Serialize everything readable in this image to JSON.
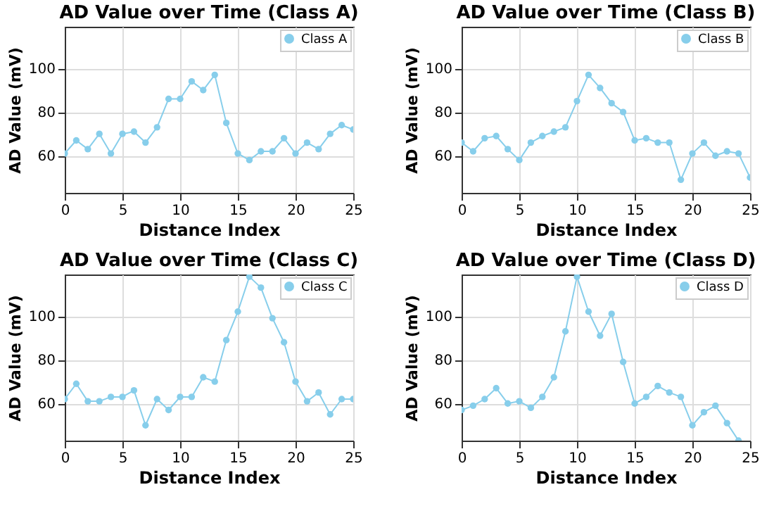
{
  "chart_data": [
    {
      "type": "line",
      "title": "AD Value over Time (Class A)",
      "xlabel": "Distance Index",
      "ylabel": "AD Value (mV)",
      "x": [
        0,
        1,
        2,
        3,
        4,
        5,
        6,
        7,
        8,
        9,
        10,
        11,
        12,
        13,
        14,
        15,
        16,
        17,
        18,
        19,
        20,
        21,
        22,
        23,
        24,
        25
      ],
      "series": [
        {
          "name": "Class A",
          "color": "#87ceeb",
          "values": [
            61,
            67,
            63,
            70,
            61,
            70,
            71,
            66,
            73,
            86,
            86,
            94,
            90,
            97,
            75,
            61,
            58,
            62,
            62,
            68,
            61,
            66,
            63,
            70,
            74,
            72
          ]
        }
      ],
      "xlim": [
        0,
        25
      ],
      "ylim": [
        43,
        119
      ],
      "xticks": [
        0,
        5,
        10,
        15,
        20,
        25
      ],
      "yticks": [
        60,
        80,
        100
      ],
      "grid": true,
      "legend": "top right",
      "marker": "circle",
      "line_style": "solid"
    },
    {
      "type": "line",
      "title": "AD Value over Time (Class B)",
      "xlabel": "Distance Index",
      "ylabel": "AD Value (mV)",
      "x": [
        0,
        1,
        2,
        3,
        4,
        5,
        6,
        7,
        8,
        9,
        10,
        11,
        12,
        13,
        14,
        15,
        16,
        17,
        18,
        19,
        20,
        21,
        22,
        23,
        24,
        25
      ],
      "series": [
        {
          "name": "Class B",
          "color": "#87ceeb",
          "values": [
            66,
            62,
            68,
            69,
            63,
            58,
            66,
            69,
            71,
            73,
            85,
            97,
            91,
            84,
            80,
            67,
            68,
            66,
            66,
            49,
            61,
            66,
            60,
            62,
            61,
            50
          ]
        }
      ],
      "xlim": [
        0,
        25
      ],
      "ylim": [
        43,
        119
      ],
      "xticks": [
        0,
        5,
        10,
        15,
        20,
        25
      ],
      "yticks": [
        60,
        80,
        100
      ],
      "grid": true,
      "legend": "top right",
      "marker": "circle",
      "line_style": "solid"
    },
    {
      "type": "line",
      "title": "AD Value over Time (Class C)",
      "xlabel": "Distance Index",
      "ylabel": "AD Value (mV)",
      "x": [
        0,
        1,
        2,
        3,
        4,
        5,
        6,
        7,
        8,
        9,
        10,
        11,
        12,
        13,
        14,
        15,
        16,
        17,
        18,
        19,
        20,
        21,
        22,
        23,
        24,
        25
      ],
      "series": [
        {
          "name": "Class C",
          "color": "#87ceeb",
          "values": [
            62,
            69,
            61,
            61,
            63,
            63,
            66,
            50,
            62,
            57,
            63,
            63,
            72,
            70,
            89,
            102,
            118,
            113,
            99,
            88,
            70,
            61,
            65,
            55,
            62,
            62
          ]
        }
      ],
      "xlim": [
        0,
        25
      ],
      "ylim": [
        43,
        119
      ],
      "xticks": [
        0,
        5,
        10,
        15,
        20,
        25
      ],
      "yticks": [
        60,
        80,
        100
      ],
      "grid": true,
      "legend": "top right",
      "marker": "circle",
      "line_style": "solid"
    },
    {
      "type": "line",
      "title": "AD Value over Time (Class D)",
      "xlabel": "Distance Index",
      "ylabel": "AD Value (mV)",
      "x": [
        0,
        1,
        2,
        3,
        4,
        5,
        6,
        7,
        8,
        9,
        10,
        11,
        12,
        13,
        14,
        15,
        16,
        17,
        18,
        19,
        20,
        21,
        22,
        23,
        24
      ],
      "series": [
        {
          "name": "Class D",
          "color": "#87ceeb",
          "values": [
            57,
            59,
            62,
            67,
            60,
            61,
            58,
            63,
            72,
            93,
            118,
            102,
            91,
            101,
            79,
            60,
            63,
            68,
            65,
            63,
            50,
            56,
            59,
            51,
            43
          ]
        }
      ],
      "xlim": [
        0,
        25
      ],
      "ylim": [
        43,
        119
      ],
      "xticks": [
        0,
        5,
        10,
        15,
        20,
        25
      ],
      "yticks": [
        60,
        80,
        100
      ],
      "grid": true,
      "legend": "top right",
      "marker": "circle",
      "line_style": "solid"
    }
  ]
}
